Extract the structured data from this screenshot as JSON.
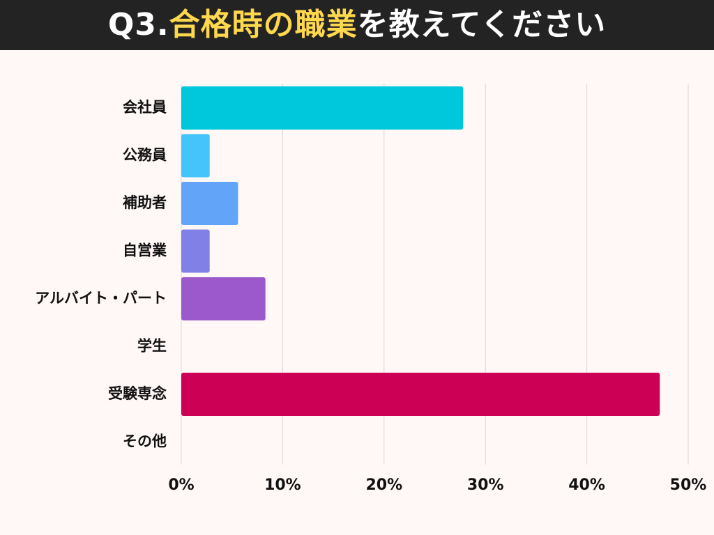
{
  "header": {
    "title_prefix": "Q3.",
    "title_highlight": "合格時の職業",
    "title_suffix": "を教えてください"
  },
  "colors": {
    "header_bg": "#232323",
    "title_white": "#ffffff",
    "title_highlight": "#ffd84d",
    "background": "#fff8f7",
    "grid": "#d7d7d7"
  },
  "chart_data": {
    "type": "bar",
    "orientation": "horizontal",
    "categories": [
      "会社員",
      "公務員",
      "補助者",
      "自営業",
      "アルバイト・パート",
      "学生",
      "受験専念",
      "その他"
    ],
    "values": [
      27.8,
      2.8,
      5.6,
      2.8,
      8.3,
      0,
      47.2,
      0
    ],
    "colors": [
      "#00c8dc",
      "#45c3fb",
      "#62a5f8",
      "#8080e6",
      "#9b59cc",
      "#b0b0b0",
      "#cc0055",
      "#b0b0b0"
    ],
    "xlim": [
      0,
      50
    ],
    "xticks": [
      0,
      10,
      20,
      30,
      40,
      50
    ],
    "xtick_labels": [
      "0%",
      "10%",
      "20%",
      "30%",
      "40%",
      "50%"
    ],
    "grid": true,
    "legend": false
  }
}
